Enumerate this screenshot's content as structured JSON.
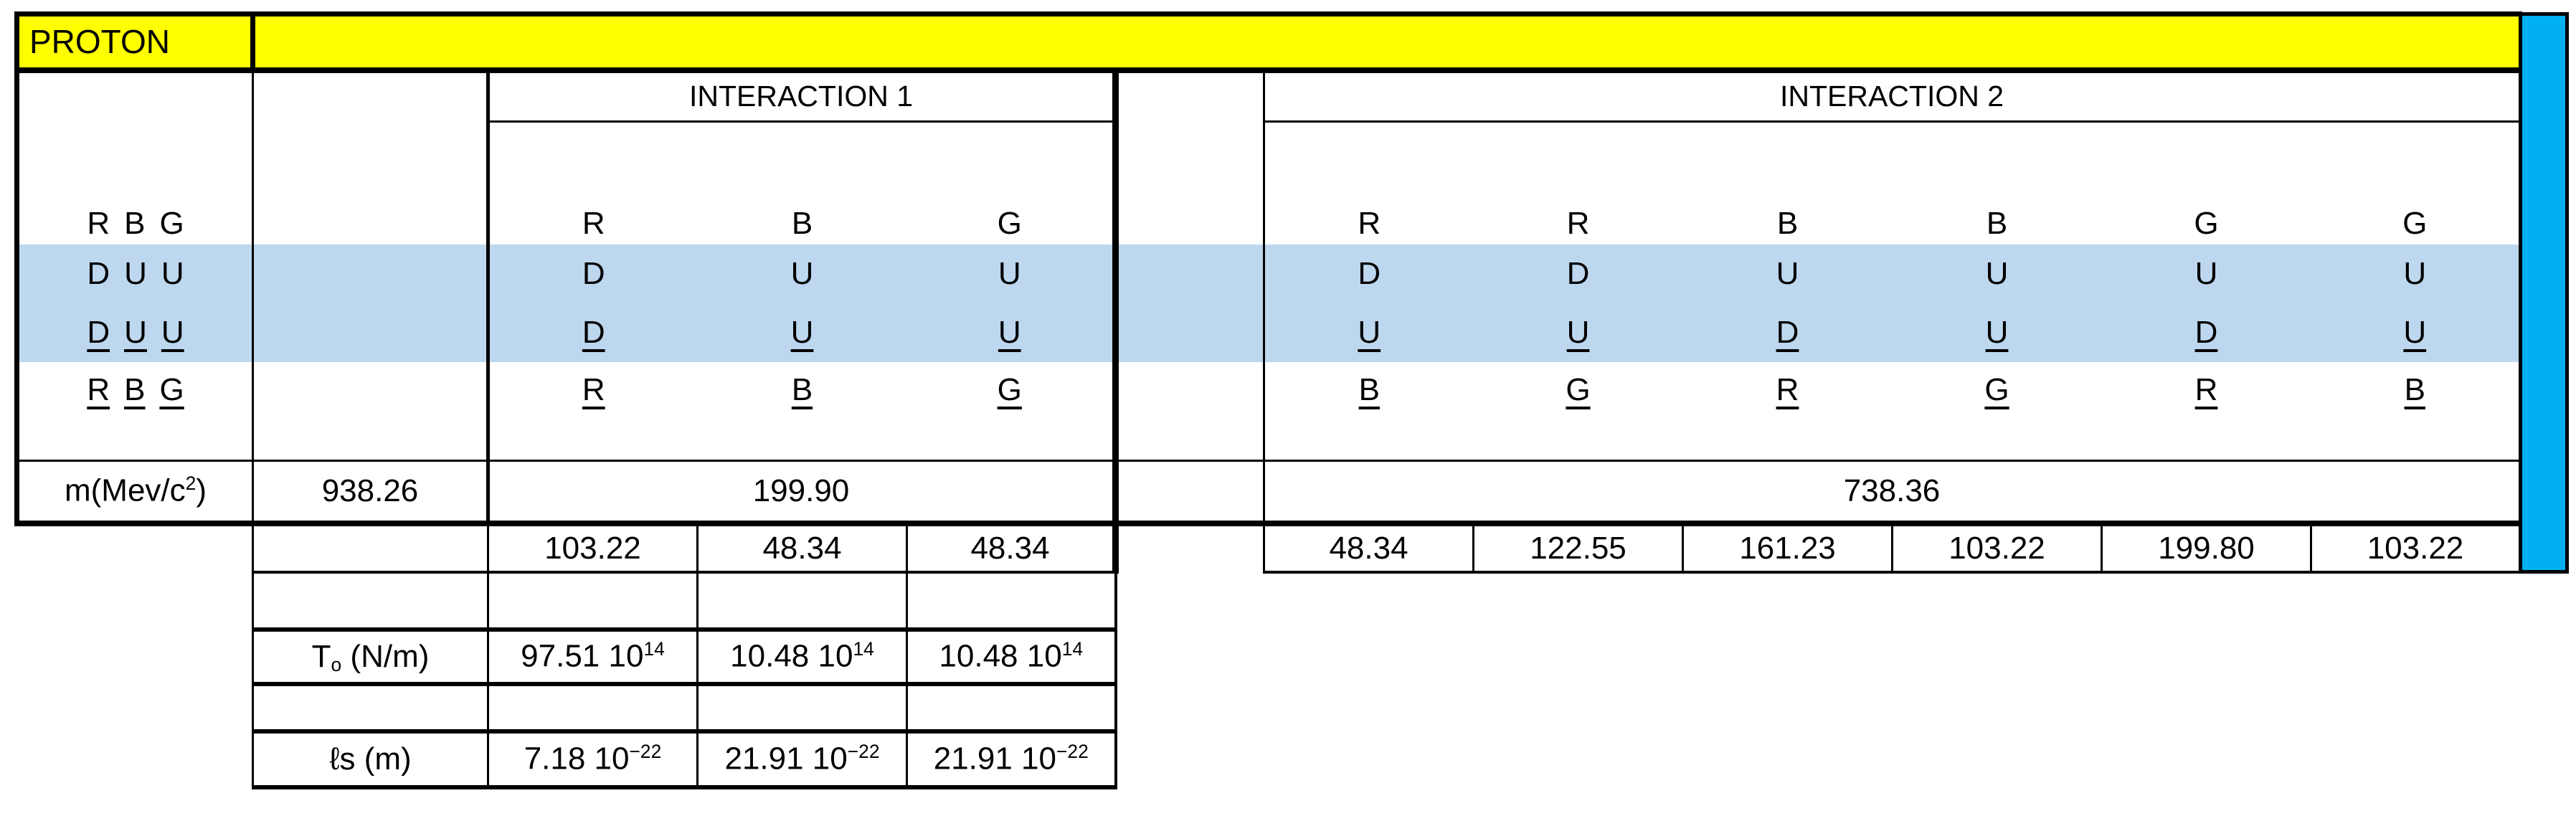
{
  "colors": {
    "header_yellow": "#FFFF00",
    "sidebar_cyan": "#00B0F0",
    "highlight_blue": "#BDD7EE",
    "border_black": "#000000"
  },
  "header": {
    "proton_label": "PROTON"
  },
  "col_a": {
    "rows": [
      "R B G",
      "D U U",
      "D U U",
      "R B G"
    ]
  },
  "interaction1": {
    "title": "INTERACTION 1",
    "rows": [
      [
        "R",
        "B",
        "G"
      ],
      [
        "D",
        "U",
        "U"
      ],
      [
        "D",
        "U",
        "U"
      ],
      [
        "R",
        "B",
        "G"
      ]
    ]
  },
  "interaction2": {
    "title": "INTERACTION 2",
    "rows": [
      [
        "R",
        "R",
        "B",
        "B",
        "G",
        "G"
      ],
      [
        "D",
        "D",
        "U",
        "U",
        "U",
        "U"
      ],
      [
        "U",
        "U",
        "D",
        "U",
        "D",
        "U"
      ],
      [
        "B",
        "G",
        "R",
        "G",
        "R",
        "B"
      ]
    ]
  },
  "mass_row": {
    "label": "m(Mev/c^2^)",
    "proton_mass": "938.26",
    "interaction1_mass": "199.90",
    "interaction2_mass": "738.36"
  },
  "energy_row": {
    "interaction1": [
      "103.22",
      "48.34",
      "48.34"
    ],
    "interaction2": [
      "48.34",
      "122.55",
      "161.23",
      "103.22",
      "199.80",
      "103.22"
    ]
  },
  "tension_row": {
    "label": "T~o~ (N/m)",
    "values": [
      "97.51 10^14^",
      "10.48 10^14^",
      "10.48 10^14^"
    ]
  },
  "length_row": {
    "label": "ℓs (m)",
    "values": [
      "7.18 10^−22^",
      "21.91 10^−22^",
      "21.91 10^−22^"
    ]
  }
}
